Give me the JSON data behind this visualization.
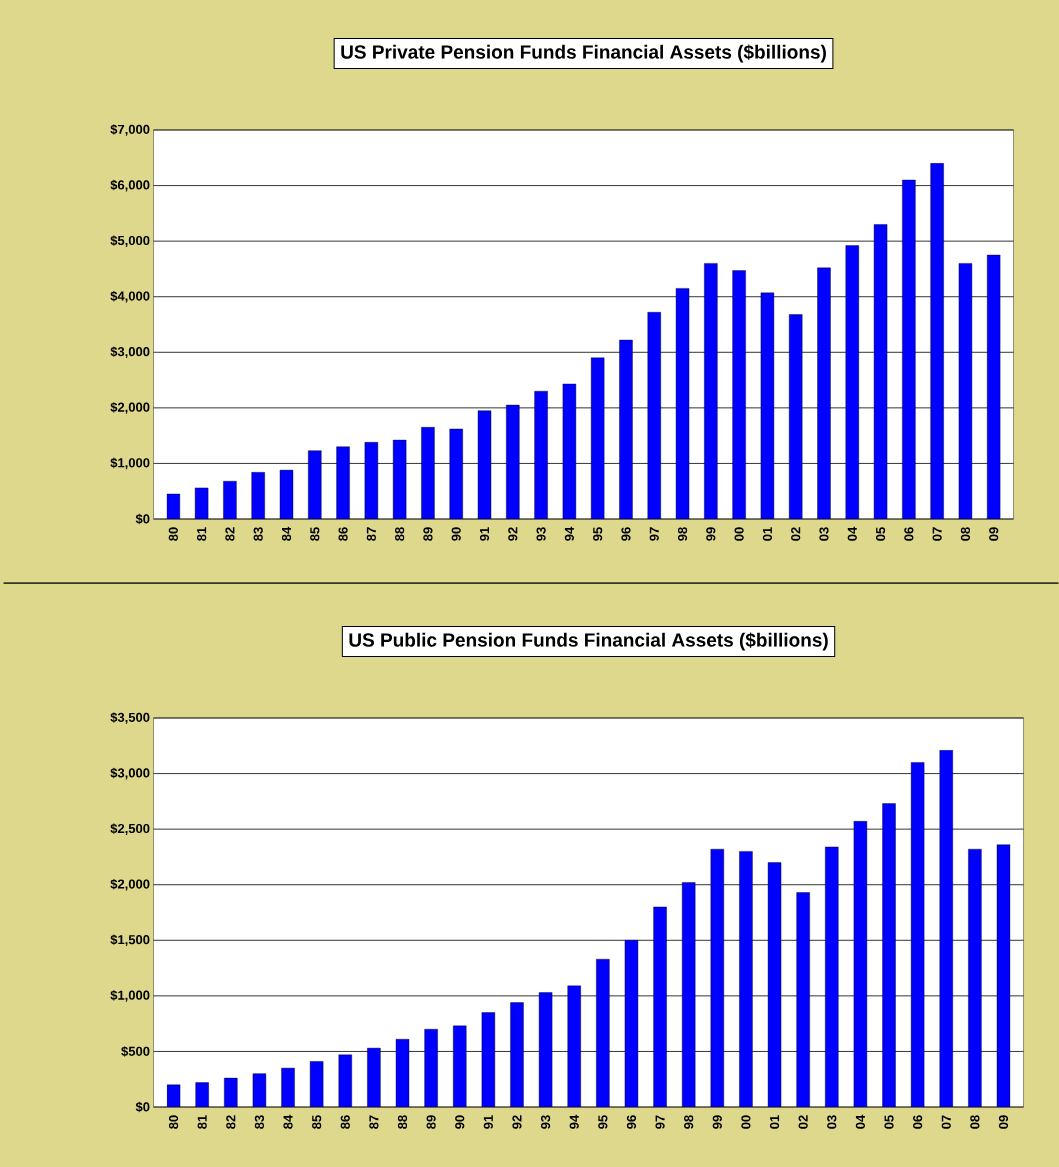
{
  "chart_data": [
    {
      "type": "bar",
      "title": "US Private Pension Funds Financial Assets ($billions)",
      "categories": [
        "80",
        "81",
        "82",
        "83",
        "84",
        "85",
        "86",
        "87",
        "88",
        "89",
        "90",
        "91",
        "92",
        "93",
        "94",
        "95",
        "96",
        "97",
        "98",
        "99",
        "00",
        "01",
        "02",
        "03",
        "04",
        "05",
        "06",
        "07",
        "08",
        "09"
      ],
      "values": [
        450,
        560,
        680,
        840,
        880,
        1230,
        1300,
        1380,
        1420,
        1650,
        1620,
        1950,
        2050,
        2300,
        2430,
        2900,
        3220,
        3720,
        4150,
        4600,
        4470,
        4070,
        3680,
        4520,
        4920,
        5300,
        6100,
        6400,
        4600,
        4750
      ],
      "color": "#0000ff",
      "ylim": [
        0,
        7000
      ],
      "yticks": [
        {
          "value": 0,
          "label": "$0"
        },
        {
          "value": 1000,
          "label": "$1,000"
        },
        {
          "value": 2000,
          "label": "$2,000"
        },
        {
          "value": 3000,
          "label": "$3,000"
        },
        {
          "value": 4000,
          "label": "$4,000"
        },
        {
          "value": 5000,
          "label": "$5,000"
        },
        {
          "value": 6000,
          "label": "$6,000"
        },
        {
          "value": 7000,
          "label": "$7,000"
        }
      ],
      "grid": "y"
    },
    {
      "type": "bar",
      "title": "US Public Pension Funds Financial Assets ($billions)",
      "categories": [
        "80",
        "81",
        "82",
        "83",
        "84",
        "85",
        "86",
        "87",
        "88",
        "89",
        "90",
        "91",
        "92",
        "93",
        "94",
        "95",
        "96",
        "97",
        "98",
        "99",
        "00",
        "01",
        "02",
        "03",
        "04",
        "05",
        "06",
        "07",
        "08",
        "09"
      ],
      "values": [
        200,
        220,
        260,
        300,
        350,
        410,
        470,
        530,
        610,
        700,
        730,
        850,
        940,
        1030,
        1090,
        1330,
        1500,
        1800,
        2020,
        2320,
        2300,
        2200,
        1930,
        2340,
        2570,
        2730,
        3100,
        3210,
        2320,
        2360
      ],
      "color": "#0000ff",
      "ylim": [
        0,
        3500
      ],
      "yticks": [
        {
          "value": 0,
          "label": "$0"
        },
        {
          "value": 500,
          "label": "$500"
        },
        {
          "value": 1000,
          "label": "$1,000"
        },
        {
          "value": 1500,
          "label": "$1,500"
        },
        {
          "value": 2000,
          "label": "$2,000"
        },
        {
          "value": 2500,
          "label": "$2,500"
        },
        {
          "value": 3000,
          "label": "$3,000"
        },
        {
          "value": 3500,
          "label": "$3,500"
        }
      ],
      "grid": "y"
    }
  ]
}
